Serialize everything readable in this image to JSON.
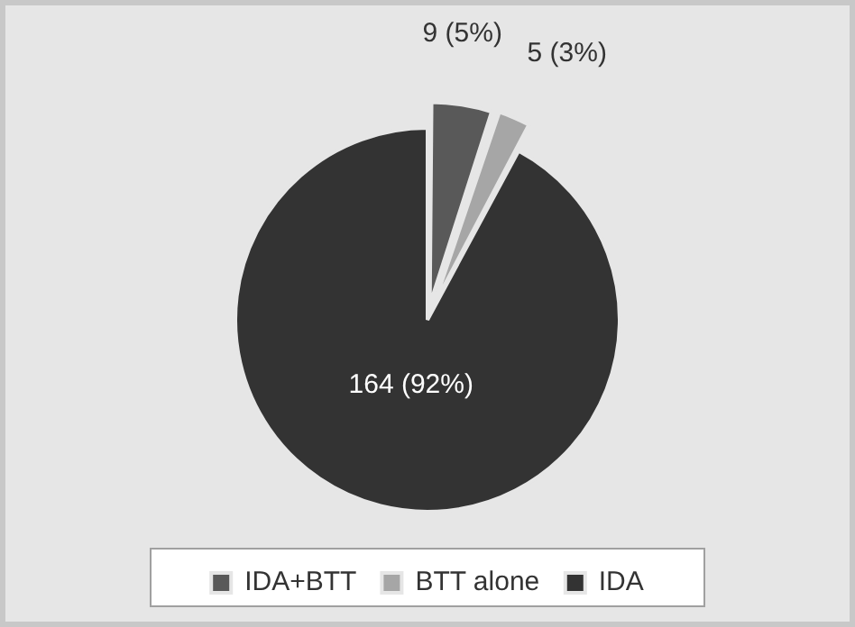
{
  "chart_data": {
    "type": "pie",
    "categories": [
      "IDA+BTT",
      "BTT alone",
      "IDA"
    ],
    "values": [
      9,
      5,
      164
    ],
    "colors": [
      "#595959",
      "#a6a6a6",
      "#333333"
    ],
    "value_labels": [
      "9 (5%)",
      "5 (3%)",
      "164 (92%)"
    ],
    "legend": "bottom"
  }
}
